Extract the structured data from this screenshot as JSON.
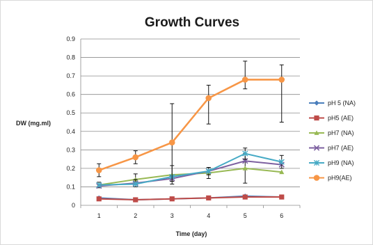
{
  "chart_data": {
    "type": "line",
    "title": "Growth Curves",
    "xlabel": "Time (day)",
    "ylabel": "DW (mg.ml)",
    "x": [
      1,
      2,
      3,
      4,
      5,
      6
    ],
    "xlim": [
      0.5,
      6.5
    ],
    "ylim": [
      0,
      0.9
    ],
    "yticks": [
      "0",
      "0.1",
      "0.2",
      "0.3",
      "0.4",
      "0.5",
      "0.6",
      "0.7",
      "0.8",
      "0.9"
    ],
    "xticks": [
      "1",
      "2",
      "3",
      "4",
      "5",
      "6"
    ],
    "grid": "horizontal major gridlines",
    "legend_position": "right",
    "series": [
      {
        "name": "pH 5 (NA)",
        "color": "#4a7ebb",
        "marker": "diamond",
        "values": [
          0.04,
          0.03,
          0.035,
          0.04,
          0.05,
          0.045
        ],
        "errors": [
          0,
          0,
          0,
          0,
          0,
          0
        ]
      },
      {
        "name": "pH5 (AE)",
        "color": "#be4b48",
        "marker": "square",
        "values": [
          0.035,
          0.03,
          0.035,
          0.04,
          0.045,
          0.045
        ],
        "errors": [
          0,
          0,
          0,
          0,
          0,
          0
        ]
      },
      {
        "name": "pH7 (NA)",
        "color": "#98b954",
        "marker": "triangle",
        "values": [
          0.11,
          0.14,
          0.165,
          0.175,
          0.2,
          0.18
        ],
        "errors": [
          0.015,
          0.03,
          0.05,
          0.03,
          0.08,
          0
        ]
      },
      {
        "name": "pH7 (AE)",
        "color": "#7d60a0",
        "marker": "x",
        "values": [
          0.105,
          0.12,
          0.145,
          0.185,
          0.24,
          0.22
        ],
        "errors": [
          0,
          0.02,
          0.015,
          0.02,
          0,
          0
        ]
      },
      {
        "name": "pH9 (NA)",
        "color": "#46aac5",
        "marker": "star",
        "values": [
          0.11,
          0.115,
          0.155,
          0.185,
          0.28,
          0.235
        ],
        "errors": [
          0,
          0,
          0,
          0,
          0.03,
          0.035
        ]
      },
      {
        "name": "pH9(AE)",
        "color": "#f79646",
        "marker": "circle",
        "values": [
          0.19,
          0.26,
          0.34,
          0.58,
          0.68,
          0.68
        ],
        "errors": [
          0.035,
          0.035,
          0.21,
          0.07,
          0.1,
          0.08
        ],
        "errors_low": [
          0.035,
          0.035,
          0.21,
          0.14,
          0.05,
          0.23
        ]
      }
    ]
  }
}
